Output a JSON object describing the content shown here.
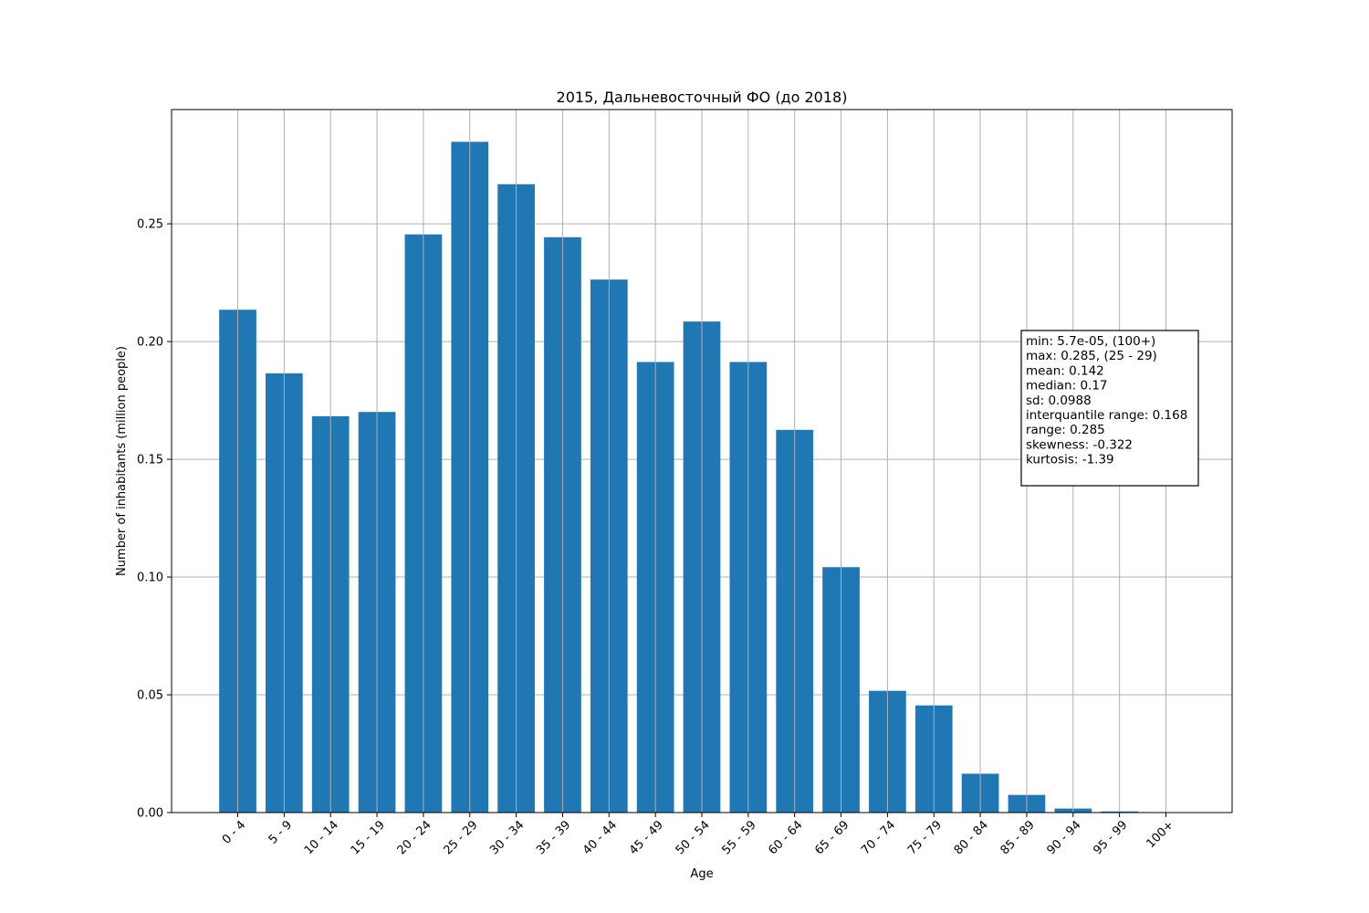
{
  "chart_data": {
    "type": "bar",
    "title": "2015, Дальневосточный ФО (до 2018)",
    "xlabel": "Age",
    "ylabel": "Number of inhabitants (million people)",
    "categories": [
      "0 - 4",
      "5 - 9",
      "10 - 14",
      "15 - 19",
      "20 - 24",
      "25 - 29",
      "30 - 34",
      "35 - 39",
      "40 - 44",
      "45 - 49",
      "50 - 54",
      "55 - 59",
      "60 - 64",
      "65 - 69",
      "70 - 74",
      "75 - 79",
      "80 - 84",
      "85 - 89",
      "90 - 94",
      "95 - 99",
      "100+"
    ],
    "values": [
      0.2135,
      0.1865,
      0.1683,
      0.1701,
      0.2455,
      0.2848,
      0.2668,
      0.2443,
      0.2263,
      0.1913,
      0.2085,
      0.1913,
      0.1625,
      0.1042,
      0.0517,
      0.0455,
      0.0165,
      0.0075,
      0.0017,
      0.0005,
      5.7e-05
    ],
    "ylim": [
      0,
      0.2985
    ],
    "yticks": [
      0.0,
      0.05,
      0.1,
      0.15,
      0.2,
      0.25
    ],
    "ytick_labels": [
      "0.00",
      "0.05",
      "0.10",
      "0.15",
      "0.20",
      "0.25"
    ],
    "grid": true,
    "bar_color": "#1f77b4",
    "stats_box": {
      "placement": "right",
      "lines": [
        "min: 5.7e-05, (100+)",
        "max: 0.285, (25 - 29)",
        "mean: 0.142",
        "median: 0.17",
        "sd: 0.0988",
        "interquantile range: 0.168",
        "range: 0.285",
        "skewness: -0.322",
        "kurtosis: -1.39"
      ]
    }
  }
}
